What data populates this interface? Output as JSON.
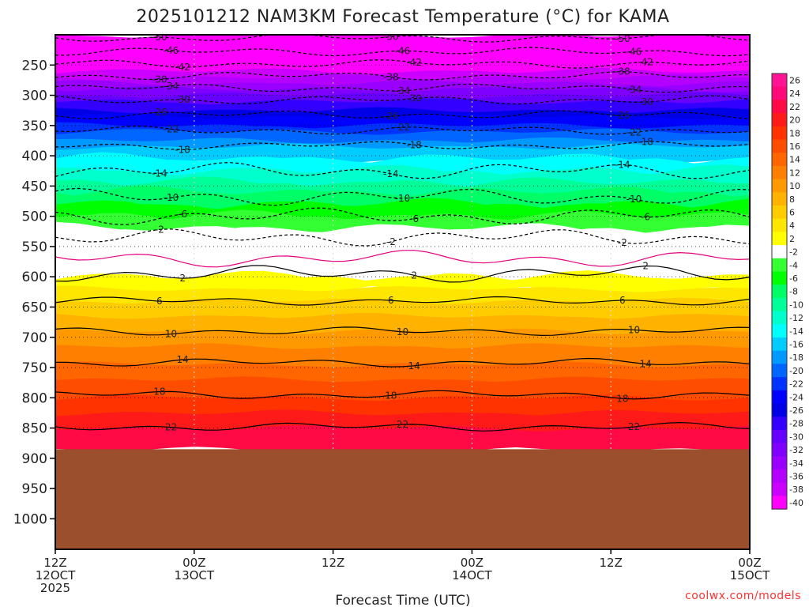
{
  "chart_data": {
    "type": "heatmap",
    "title": "2025101212 NAM3KM Forecast Temperature (°C) for KAMA",
    "xlabel": "Forecast Time (UTC)",
    "ylabel": "",
    "credit": "coolwx.com/models",
    "x_ticks": [
      {
        "hours": 0,
        "lines": [
          "12Z",
          "12OCT",
          "2025"
        ]
      },
      {
        "hours": 12,
        "lines": [
          "00Z",
          "13OCT"
        ]
      },
      {
        "hours": 24,
        "lines": [
          "12Z"
        ]
      },
      {
        "hours": 36,
        "lines": [
          "00Z",
          "14OCT"
        ]
      },
      {
        "hours": 48,
        "lines": [
          "12Z"
        ]
      },
      {
        "hours": 60,
        "lines": [
          "00Z",
          "15OCT"
        ]
      }
    ],
    "xlim": [
      0,
      60
    ],
    "y_ticks": [
      250,
      300,
      350,
      400,
      450,
      500,
      550,
      600,
      650,
      700,
      750,
      800,
      850,
      900,
      950,
      1000
    ],
    "ylim": [
      1050,
      200
    ],
    "ground_pressure": 885,
    "colorbar_labels": [
      "26",
      "24",
      "22",
      "20",
      "18",
      "16",
      "14",
      "12",
      "10",
      "8",
      "6",
      "4",
      "2",
      "-2",
      "-4",
      "-6",
      "-8",
      "-10",
      "-12",
      "-14",
      "-16",
      "-18",
      "-20",
      "-22",
      "-24",
      "-26",
      "-28",
      "-30",
      "-32",
      "-34",
      "-36",
      "-38",
      "-40"
    ],
    "colorbar_colors": [
      "#ff1493",
      "#ff0a78",
      "#ff0a45",
      "#ff1a1a",
      "#ff3300",
      "#ff4d00",
      "#ff6600",
      "#ff8000",
      "#ff9900",
      "#ffb300",
      "#ffcc00",
      "#ffe600",
      "#ffff00",
      "#ffffff",
      "#33ff33",
      "#00ff00",
      "#00ff66",
      "#00ff99",
      "#00ffcc",
      "#00ffff",
      "#00ccff",
      "#0099ff",
      "#0066ff",
      "#0033ff",
      "#0000ff",
      "#0000e6",
      "#3300ff",
      "#6600ff",
      "#8000ff",
      "#9900ff",
      "#b300ff",
      "#cc00ff",
      "#ff00ff"
    ],
    "profile": [
      {
        "p": 205,
        "t": -52
      },
      {
        "p": 230,
        "t": -46
      },
      {
        "p": 250,
        "t": -42
      },
      {
        "p": 270,
        "t": -38
      },
      {
        "p": 290,
        "t": -34
      },
      {
        "p": 310,
        "t": -30
      },
      {
        "p": 330,
        "t": -27
      },
      {
        "p": 360,
        "t": -22
      },
      {
        "p": 385,
        "t": -18
      },
      {
        "p": 425,
        "t": -14
      },
      {
        "p": 460,
        "t": -10
      },
      {
        "p": 500,
        "t": -6
      },
      {
        "p": 535,
        "t": -2
      },
      {
        "p": 570,
        "t": 0
      },
      {
        "p": 600,
        "t": 2
      },
      {
        "p": 640,
        "t": 6
      },
      {
        "p": 690,
        "t": 10
      },
      {
        "p": 745,
        "t": 14
      },
      {
        "p": 800,
        "t": 18
      },
      {
        "p": 850,
        "t": 22
      },
      {
        "p": 885,
        "t": 24
      }
    ],
    "contours": [
      {
        "value": -50,
        "p": 205
      },
      {
        "value": -46,
        "p": 228
      },
      {
        "value": -42,
        "p": 248
      },
      {
        "value": -38,
        "p": 268
      },
      {
        "value": -34,
        "p": 288
      },
      {
        "value": -30,
        "p": 308
      },
      {
        "value": -26,
        "p": 332
      },
      {
        "value": -22,
        "p": 358
      },
      {
        "value": -18,
        "p": 383
      },
      {
        "value": -14,
        "p": 425
      },
      {
        "value": -10,
        "p": 468
      },
      {
        "value": -6,
        "p": 500
      },
      {
        "value": -2,
        "p": 535
      },
      {
        "value": 0,
        "p": 570
      },
      {
        "value": 2,
        "p": 595
      },
      {
        "value": 6,
        "p": 640
      },
      {
        "value": 10,
        "p": 690
      },
      {
        "value": 14,
        "p": 742
      },
      {
        "value": 18,
        "p": 795
      },
      {
        "value": 22,
        "p": 848
      }
    ]
  }
}
